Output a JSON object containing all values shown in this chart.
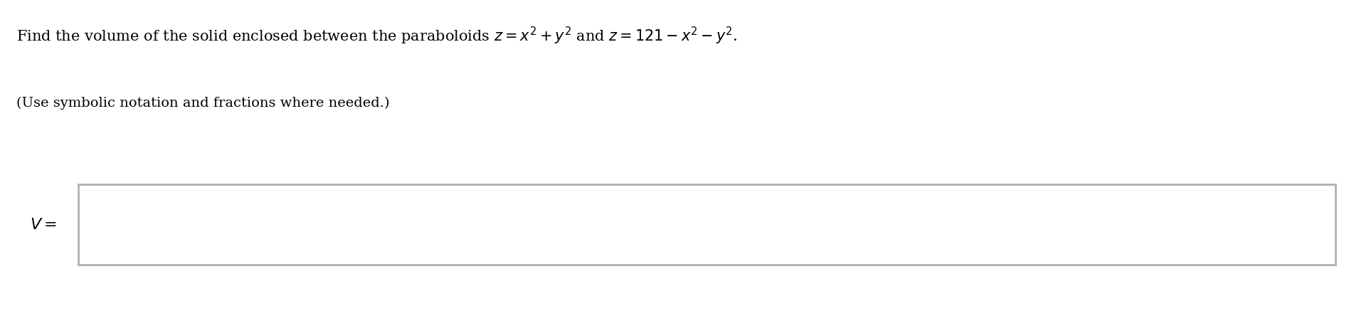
{
  "line1": "Find the volume of the solid enclosed between the paraboloids $z = x^{2} + y^{2}$ and $z = 121 - x^{2} - y^{2}$.",
  "line2": "(Use symbolic notation and fractions where needed.)",
  "label": "$V =$",
  "bg_color": "#ffffff",
  "text_color": "#000000",
  "box_fill": "#ffffff",
  "box_edge": "#b0b0b0",
  "font_size_line1": 15,
  "font_size_line2": 14,
  "font_size_label": 16,
  "fig_width": 18.96,
  "fig_height": 4.52,
  "dpi": 100
}
